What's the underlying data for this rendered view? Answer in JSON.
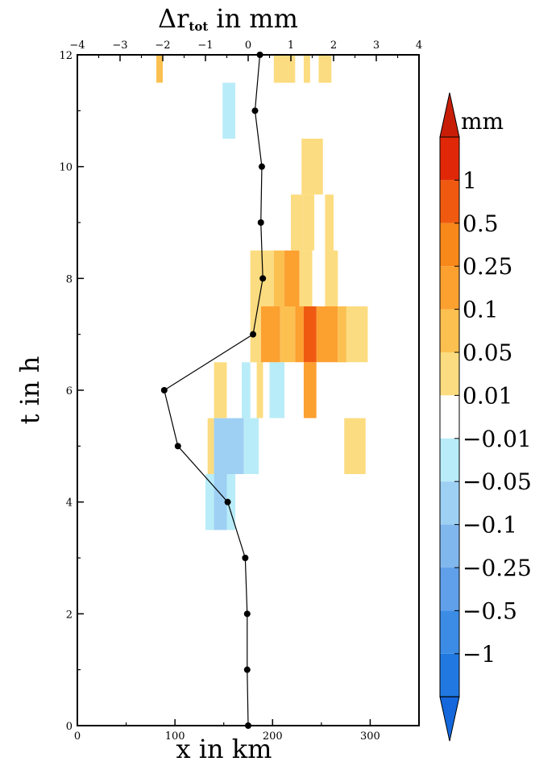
{
  "chart_data": {
    "type": "heatmap",
    "title": "",
    "xlabel": "x in km",
    "ylabel": "t in h",
    "x2label_main": "Δr",
    "x2label_sub": "tot",
    "x2label_unit": "in mm",
    "xlim": [
      0,
      350
    ],
    "ylim": [
      0,
      12
    ],
    "x2lim": [
      -4,
      4
    ],
    "xticks": [
      "0",
      "100",
      "200",
      "300"
    ],
    "xtick_values": [
      0,
      100,
      200,
      300
    ],
    "yticks": [
      "0",
      "2",
      "4",
      "6",
      "8",
      "10",
      "12"
    ],
    "ytick_values": [
      0,
      2,
      4,
      6,
      8,
      10,
      12
    ],
    "x2ticks": [
      "−4",
      "−3",
      "−2",
      "−1",
      "0",
      "1",
      "2",
      "3",
      "4"
    ],
    "x2tick_values": [
      -4,
      -3,
      -2,
      -1,
      0,
      1,
      2,
      3,
      4
    ],
    "colorbar": {
      "unit": "mm",
      "labels": [
        "1",
        "0.5",
        "0.25",
        "0.1",
        "0.05",
        "0.01",
        "−0.01",
        "−0.05",
        "−0.1",
        "−0.25",
        "−0.5",
        "−1"
      ],
      "colors": [
        "#e02808",
        "#f05a10",
        "#f8881a",
        "#fca030",
        "#fcc050",
        "#fcdc80",
        "#ffffff",
        "#b8ecf8",
        "#9ed0f4",
        "#80b8ee",
        "#60a0ea",
        "#3c8ce6",
        "#2078e0"
      ],
      "extend": "both"
    },
    "cells": [
      {
        "r": [
          -2.15,
          -2.0
        ],
        "t": [
          11.5,
          12.0
        ],
        "v": 0.05
      },
      {
        "r": [
          -2.0,
          -1.85
        ],
        "t": [
          11.5,
          12.0
        ],
        "v": -0.01
      },
      {
        "r": [
          0.6,
          1.1
        ],
        "t": [
          11.5,
          12.0
        ],
        "v": 0.01
      },
      {
        "r": [
          1.3,
          1.45
        ],
        "t": [
          11.5,
          12.0
        ],
        "v": 0.01
      },
      {
        "r": [
          1.65,
          1.95
        ],
        "t": [
          11.5,
          12.0
        ],
        "v": 0.01
      },
      {
        "r": [
          -2.15,
          -1.95
        ],
        "t": [
          10.5,
          11.5
        ],
        "v": -0.01
      },
      {
        "r": [
          -0.6,
          -0.3
        ],
        "t": [
          10.5,
          11.5
        ],
        "v": -0.05
      },
      {
        "r": [
          -0.3,
          0.0
        ],
        "t": [
          10.5,
          11.5
        ],
        "v": -0.01
      },
      {
        "r": [
          1.25,
          1.75
        ],
        "t": [
          9.5,
          10.5
        ],
        "v": 0.01
      },
      {
        "r": [
          -2.3,
          -2.15
        ],
        "t": [
          8.5,
          9.5
        ],
        "v": -0.01
      },
      {
        "r": [
          0.2,
          0.35
        ],
        "t": [
          8.5,
          9.5
        ],
        "v": -0.01
      },
      {
        "r": [
          1.0,
          1.3
        ],
        "t": [
          8.5,
          9.5
        ],
        "v": 0.01
      },
      {
        "r": [
          1.3,
          1.55
        ],
        "t": [
          8.5,
          9.5
        ],
        "v": 0.01
      },
      {
        "r": [
          1.55,
          1.8
        ],
        "t": [
          8.5,
          9.5
        ],
        "v": -0.01
      },
      {
        "r": [
          1.8,
          2.0
        ],
        "t": [
          8.5,
          9.5
        ],
        "v": 0.01
      },
      {
        "r": [
          0.05,
          0.6
        ],
        "t": [
          7.5,
          8.5
        ],
        "v": 0.01
      },
      {
        "r": [
          0.6,
          0.85
        ],
        "t": [
          7.5,
          8.5
        ],
        "v": 0.05
      },
      {
        "r": [
          0.85,
          1.2
        ],
        "t": [
          7.5,
          8.5
        ],
        "v": 0.1
      },
      {
        "r": [
          1.2,
          1.5
        ],
        "t": [
          7.5,
          8.5
        ],
        "v": 0.01
      },
      {
        "r": [
          1.5,
          1.8
        ],
        "t": [
          7.5,
          8.5
        ],
        "v": -0.01
      },
      {
        "r": [
          1.8,
          2.1
        ],
        "t": [
          7.5,
          8.5
        ],
        "v": 0.01
      },
      {
        "r": [
          2.25,
          2.4
        ],
        "t": [
          7.5,
          8.5
        ],
        "v": -0.01
      },
      {
        "r": [
          0.05,
          0.3
        ],
        "t": [
          6.5,
          7.5
        ],
        "v": 0.01
      },
      {
        "r": [
          0.3,
          0.75
        ],
        "t": [
          6.5,
          7.5
        ],
        "v": 0.1
      },
      {
        "r": [
          0.75,
          1.1
        ],
        "t": [
          6.5,
          7.5
        ],
        "v": 0.05
      },
      {
        "r": [
          1.1,
          1.3
        ],
        "t": [
          6.5,
          7.5
        ],
        "v": 0.1
      },
      {
        "r": [
          1.3,
          1.6
        ],
        "t": [
          6.5,
          7.5
        ],
        "v": 0.5
      },
      {
        "r": [
          1.6,
          2.1
        ],
        "t": [
          6.5,
          7.5
        ],
        "v": 0.1
      },
      {
        "r": [
          2.1,
          2.3
        ],
        "t": [
          6.5,
          7.5
        ],
        "v": 0.05
      },
      {
        "r": [
          2.3,
          2.8
        ],
        "t": [
          6.5,
          7.5
        ],
        "v": 0.01
      },
      {
        "r": [
          -0.8,
          -0.5
        ],
        "t": [
          5.5,
          6.5
        ],
        "v": 0.01
      },
      {
        "r": [
          -0.3,
          -0.15
        ],
        "t": [
          5.5,
          6.5
        ],
        "v": -0.01
      },
      {
        "r": [
          -0.15,
          0.05
        ],
        "t": [
          5.5,
          6.5
        ],
        "v": -0.05
      },
      {
        "r": [
          0.2,
          0.35
        ],
        "t": [
          5.5,
          6.5
        ],
        "v": 0.01
      },
      {
        "r": [
          0.35,
          0.5
        ],
        "t": [
          5.5,
          6.5
        ],
        "v": -0.01
      },
      {
        "r": [
          0.5,
          0.85
        ],
        "t": [
          5.5,
          6.5
        ],
        "v": -0.05
      },
      {
        "r": [
          0.85,
          1.3
        ],
        "t": [
          5.5,
          6.5
        ],
        "v": -0.01
      },
      {
        "r": [
          1.3,
          1.6
        ],
        "t": [
          5.5,
          6.5
        ],
        "v": 0.1
      },
      {
        "r": [
          1.6,
          2.1
        ],
        "t": [
          5.5,
          6.5
        ],
        "v": -0.01
      },
      {
        "r": [
          2.35,
          2.7
        ],
        "t": [
          5.5,
          6.5
        ],
        "v": -0.01
      },
      {
        "r": [
          -0.95,
          -0.8
        ],
        "t": [
          4.5,
          5.5
        ],
        "v": 0.01
      },
      {
        "r": [
          -0.8,
          -0.1
        ],
        "t": [
          4.5,
          5.5
        ],
        "v": -0.1
      },
      {
        "r": [
          -0.1,
          0.25
        ],
        "t": [
          4.5,
          5.5
        ],
        "v": -0.05
      },
      {
        "r": [
          0.25,
          0.9
        ],
        "t": [
          4.5,
          5.5
        ],
        "v": -0.01
      },
      {
        "r": [
          1.1,
          2.1
        ],
        "t": [
          4.5,
          5.5
        ],
        "v": -0.01
      },
      {
        "r": [
          2.25,
          2.75
        ],
        "t": [
          4.5,
          5.5
        ],
        "v": 0.01
      },
      {
        "r": [
          -1.0,
          -0.8
        ],
        "t": [
          3.5,
          4.5
        ],
        "v": -0.05
      },
      {
        "r": [
          -0.8,
          -0.5
        ],
        "t": [
          3.5,
          4.5
        ],
        "v": -0.1
      },
      {
        "r": [
          -0.5,
          -0.3
        ],
        "t": [
          3.5,
          4.5
        ],
        "v": -0.05
      },
      {
        "r": [
          0.7,
          1.0
        ],
        "t": [
          2.5,
          3.5
        ],
        "v": -0.01
      },
      {
        "r": [
          0.7,
          0.85
        ],
        "t": [
          1.5,
          2.5
        ],
        "v": -0.01
      },
      {
        "r": [
          0.2,
          0.35
        ],
        "t": [
          0.5,
          1.5
        ],
        "v": -0.01
      }
    ],
    "line": {
      "t": [
        0,
        1,
        2,
        3,
        4,
        5,
        6,
        7,
        8,
        9,
        10,
        11,
        12
      ],
      "x": [
        175,
        174,
        174,
        172,
        154,
        103,
        89,
        180,
        190,
        188,
        189,
        182,
        187
      ]
    },
    "grid": false
  }
}
